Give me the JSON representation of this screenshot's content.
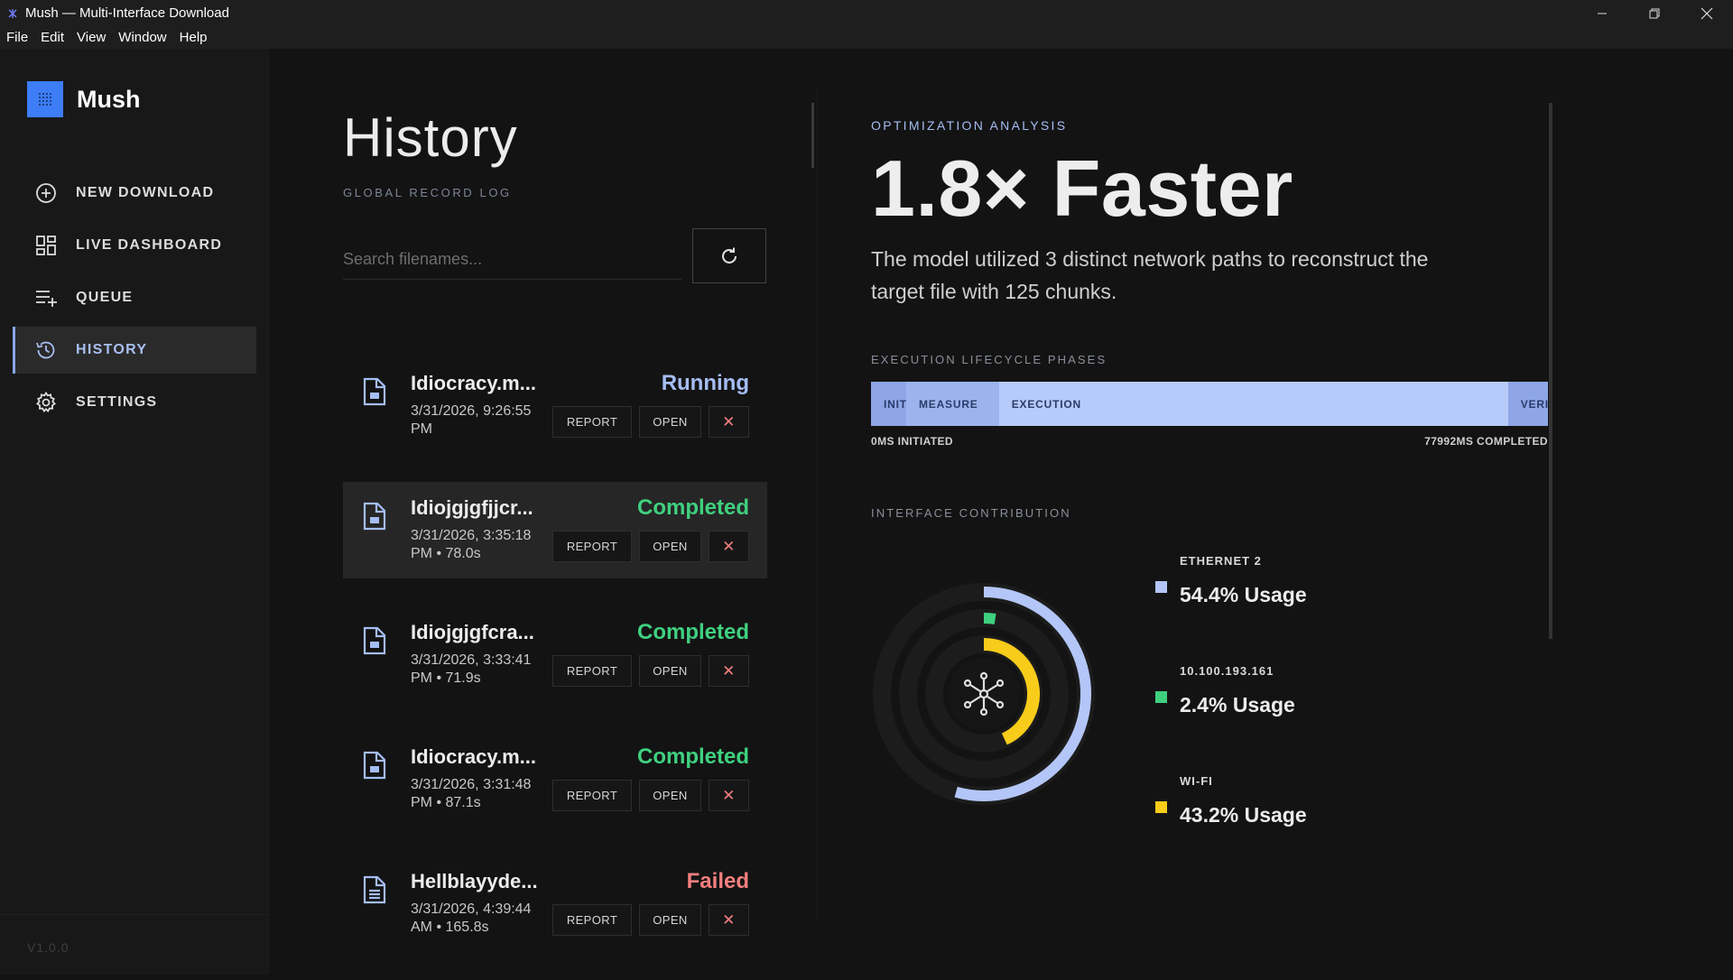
{
  "window": {
    "title": "Mush — Multi-Interface Download"
  },
  "menu": [
    "File",
    "Edit",
    "View",
    "Window",
    "Help"
  ],
  "sidebar": {
    "brand": "Mush",
    "items": [
      {
        "label": "NEW DOWNLOAD",
        "icon": "plus-circle-icon",
        "active": false
      },
      {
        "label": "LIVE DASHBOARD",
        "icon": "dashboard-grid-icon",
        "active": false
      },
      {
        "label": "QUEUE",
        "icon": "queue-list-icon",
        "active": false
      },
      {
        "label": "HISTORY",
        "icon": "history-clock-icon",
        "active": true
      },
      {
        "label": "SETTINGS",
        "icon": "gear-icon",
        "active": false
      }
    ],
    "version": "V1.0.0"
  },
  "history": {
    "title": "History",
    "subtitle": "GLOBAL RECORD LOG",
    "search_placeholder": "Search filenames...",
    "buttons": {
      "report": "REPORT",
      "open": "OPEN",
      "delete": "✕"
    },
    "rows": [
      {
        "name": "Idiocracy.m...",
        "meta": "3/31/2026, 9:26:55 PM",
        "status": "Running"
      },
      {
        "name": "Idiojgjgfjjcr...",
        "meta": "3/31/2026, 3:35:18 PM • 78.0s",
        "status": "Completed"
      },
      {
        "name": "Idiojgjgfcra...",
        "meta": "3/31/2026, 3:33:41 PM • 71.9s",
        "status": "Completed"
      },
      {
        "name": "Idiocracy.m...",
        "meta": "3/31/2026, 3:31:48 PM • 87.1s",
        "status": "Completed"
      },
      {
        "name": "Hellblayyde...",
        "meta": "3/31/2026, 4:39:44 AM • 165.8s",
        "status": "Failed"
      }
    ]
  },
  "analysis": {
    "eyebrow": "OPTIMIZATION ANALYSIS",
    "headline": "1.8× Faster",
    "description": "The model utilized 3 distinct network paths to reconstruct the target file with 125 chunks.",
    "phases_label": "EXECUTION LIFECYCLE PHASES",
    "phases": [
      {
        "label": "INIT",
        "fraction": 0.052,
        "color": "#8ea6e6"
      },
      {
        "label": "MEASURE",
        "fraction": 0.137,
        "color": "#9cb4ee"
      },
      {
        "label": "EXECUTION",
        "fraction": 0.752,
        "color": "#b7cbfa"
      },
      {
        "label": "VERIFY",
        "fraction": 0.059,
        "color": "#8ea6e6"
      }
    ],
    "phase_start": "0MS INITIATED",
    "phase_end": "77992MS COMPLETED",
    "contribution_label": "INTERFACE CONTRIBUTION",
    "interfaces": [
      {
        "name": "ETHERNET 2",
        "usage": "54.4% Usage",
        "share": 0.544,
        "color": "#b3c6f7"
      },
      {
        "name": "10.100.193.161",
        "usage": "2.4% Usage",
        "share": 0.024,
        "color": "#3fd07f"
      },
      {
        "name": "WI-FI",
        "usage": "43.2% Usage",
        "share": 0.432,
        "color": "#f7cc1a"
      }
    ]
  }
}
